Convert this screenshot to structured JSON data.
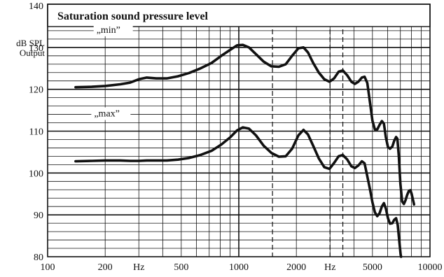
{
  "chart_data": {
    "type": "line",
    "title": "Saturation sound pressure level",
    "ylabel_lines": [
      "dB SPL",
      "Output"
    ],
    "xscale": "log",
    "xlim": [
      100,
      10000
    ],
    "ylim": [
      80,
      140
    ],
    "grid": true,
    "x_tick_labels": [
      {
        "x": 100,
        "label": "100"
      },
      {
        "x": 200,
        "label": "200"
      },
      {
        "x": 300,
        "label": "Hz"
      },
      {
        "x": 500,
        "label": "500"
      },
      {
        "x": 1000,
        "label": "1000"
      },
      {
        "x": 2000,
        "label": "2000"
      },
      {
        "x": 3000,
        "label": "Hz"
      },
      {
        "x": 5000,
        "label": "5000"
      },
      {
        "x": 10000,
        "label": "10000"
      }
    ],
    "y_tick_labels": [
      {
        "y": 80,
        "label": "80"
      },
      {
        "y": 90,
        "label": "90"
      },
      {
        "y": 100,
        "label": "100"
      },
      {
        "y": 110,
        "label": "110"
      },
      {
        "y": 120,
        "label": "120"
      },
      {
        "y": 130,
        "label": "130"
      },
      {
        "y": 140,
        "label": "140"
      }
    ],
    "series": [
      {
        "name": "„min”",
        "label_at": {
          "x": 180,
          "y": 133.5
        },
        "points": [
          [
            140,
            120.5
          ],
          [
            170,
            120.6
          ],
          [
            200,
            120.8
          ],
          [
            240,
            121.2
          ],
          [
            270,
            121.6
          ],
          [
            300,
            122.4
          ],
          [
            330,
            122.8
          ],
          [
            370,
            122.6
          ],
          [
            420,
            122.6
          ],
          [
            480,
            123.1
          ],
          [
            550,
            123.9
          ],
          [
            630,
            125.0
          ],
          [
            720,
            126.3
          ],
          [
            810,
            128.0
          ],
          [
            900,
            129.4
          ],
          [
            980,
            130.5
          ],
          [
            1050,
            130.6
          ],
          [
            1130,
            130.0
          ],
          [
            1230,
            128.4
          ],
          [
            1350,
            126.6
          ],
          [
            1480,
            125.5
          ],
          [
            1620,
            125.4
          ],
          [
            1760,
            126.0
          ],
          [
            1900,
            128.0
          ],
          [
            2050,
            129.8
          ],
          [
            2180,
            130.0
          ],
          [
            2300,
            128.8
          ],
          [
            2450,
            126.3
          ],
          [
            2620,
            124.0
          ],
          [
            2800,
            122.4
          ],
          [
            2980,
            121.8
          ],
          [
            3150,
            122.6
          ],
          [
            3330,
            124.2
          ],
          [
            3500,
            124.5
          ],
          [
            3680,
            123.4
          ],
          [
            3880,
            121.8
          ],
          [
            4050,
            121.3
          ],
          [
            4220,
            121.8
          ],
          [
            4400,
            122.8
          ],
          [
            4550,
            123.0
          ],
          [
            4700,
            121.5
          ],
          [
            4850,
            117.0
          ],
          [
            5000,
            112.5
          ],
          [
            5150,
            110.4
          ],
          [
            5300,
            110.4
          ],
          [
            5450,
            111.5
          ],
          [
            5600,
            112.4
          ],
          [
            5740,
            111.8
          ],
          [
            5880,
            108.5
          ],
          [
            6030,
            106.2
          ],
          [
            6180,
            105.8
          ],
          [
            6350,
            106.3
          ],
          [
            6500,
            107.7
          ],
          [
            6650,
            108.6
          ],
          [
            6750,
            108.2
          ],
          [
            6870,
            104.0
          ],
          [
            7000,
            97.5
          ],
          [
            7150,
            93.2
          ],
          [
            7300,
            92.6
          ],
          [
            7450,
            93.5
          ],
          [
            7600,
            94.8
          ],
          [
            7750,
            95.7
          ],
          [
            7900,
            95.9
          ],
          [
            8020,
            95.0
          ],
          [
            8150,
            93.6
          ],
          [
            8250,
            92.5
          ]
        ]
      },
      {
        "name": "„max”",
        "label_at": {
          "x": 175,
          "y": 113.5
        },
        "points": [
          [
            140,
            102.8
          ],
          [
            170,
            102.9
          ],
          [
            200,
            103.0
          ],
          [
            240,
            103.0
          ],
          [
            270,
            102.9
          ],
          [
            300,
            102.9
          ],
          [
            330,
            103.0
          ],
          [
            370,
            103.0
          ],
          [
            420,
            103.0
          ],
          [
            480,
            103.2
          ],
          [
            550,
            103.6
          ],
          [
            630,
            104.3
          ],
          [
            720,
            105.3
          ],
          [
            810,
            106.8
          ],
          [
            900,
            108.5
          ],
          [
            980,
            110.2
          ],
          [
            1050,
            110.9
          ],
          [
            1130,
            110.6
          ],
          [
            1230,
            109.0
          ],
          [
            1350,
            106.5
          ],
          [
            1480,
            104.8
          ],
          [
            1620,
            103.9
          ],
          [
            1760,
            104.0
          ],
          [
            1900,
            105.8
          ],
          [
            2050,
            109.0
          ],
          [
            2180,
            110.3
          ],
          [
            2300,
            109.2
          ],
          [
            2450,
            106.5
          ],
          [
            2620,
            103.5
          ],
          [
            2800,
            101.4
          ],
          [
            2980,
            101.0
          ],
          [
            3150,
            102.4
          ],
          [
            3330,
            104.0
          ],
          [
            3500,
            104.3
          ],
          [
            3680,
            103.3
          ],
          [
            3880,
            101.6
          ],
          [
            4050,
            101.2
          ],
          [
            4220,
            101.8
          ],
          [
            4400,
            102.8
          ],
          [
            4550,
            102.3
          ],
          [
            4700,
            99.2
          ],
          [
            4850,
            96.2
          ],
          [
            5000,
            93.0
          ],
          [
            5150,
            90.6
          ],
          [
            5300,
            89.7
          ],
          [
            5450,
            90.4
          ],
          [
            5600,
            92.0
          ],
          [
            5740,
            92.8
          ],
          [
            5880,
            91.5
          ],
          [
            6030,
            89.2
          ],
          [
            6180,
            87.9
          ],
          [
            6350,
            88.0
          ],
          [
            6500,
            88.8
          ],
          [
            6650,
            89.2
          ],
          [
            6780,
            87.6
          ],
          [
            6920,
            83.5
          ],
          [
            7020,
            80.5
          ],
          [
            7060,
            80.0
          ]
        ]
      }
    ]
  }
}
